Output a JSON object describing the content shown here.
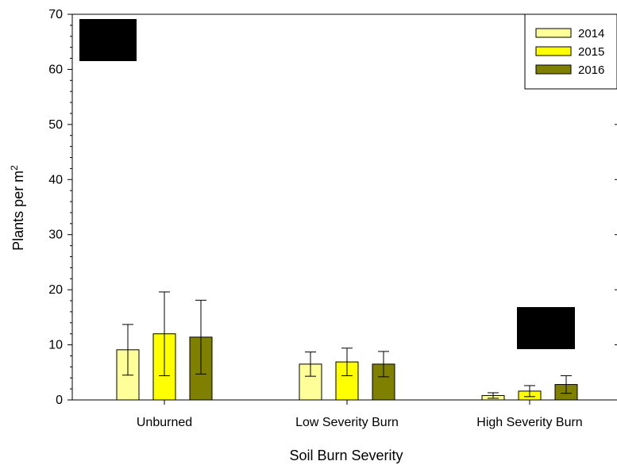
{
  "chart_data": {
    "type": "bar",
    "categories": [
      "Unburned",
      "Low Severity Burn",
      "High Severity Burn"
    ],
    "xlabel": "Soil Burn Severity",
    "ylabel": "Plants per m",
    "ylabel_superscript": "2",
    "ylim": [
      0,
      70
    ],
    "yticks": [
      0,
      10,
      20,
      30,
      40,
      50,
      60,
      70
    ],
    "legend_position": "top-right",
    "grid": false,
    "series": [
      {
        "name": "2014",
        "color": "#ffff99",
        "values": [
          9.1,
          6.5,
          0.8
        ],
        "errors": [
          4.6,
          2.2,
          0.5
        ]
      },
      {
        "name": "2015",
        "color": "#ffff00",
        "values": [
          12.0,
          6.9,
          1.6
        ],
        "errors": [
          7.6,
          2.5,
          1.0
        ]
      },
      {
        "name": "2016",
        "color": "#808000",
        "values": [
          11.4,
          6.5,
          2.8
        ],
        "errors": [
          6.7,
          2.3,
          1.6
        ]
      }
    ]
  }
}
